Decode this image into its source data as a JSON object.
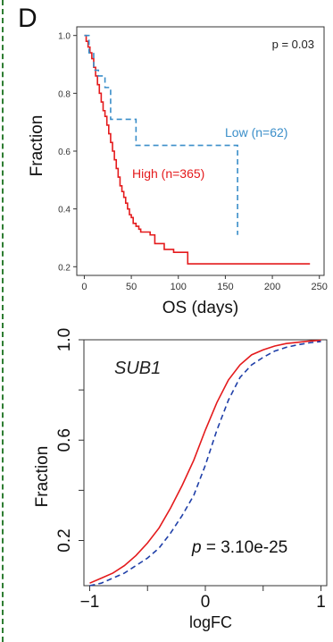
{
  "panel_label": "D",
  "chart_data": [
    {
      "type": "line",
      "subtype": "kaplan-meier step",
      "xlabel": "OS (days)",
      "ylabel": "Fraction",
      "xlim": [
        -8,
        255
      ],
      "ylim": [
        0.17,
        1.03
      ],
      "x_ticks": [
        0,
        50,
        100,
        150,
        200,
        250
      ],
      "x_tick_labels": [
        "0",
        "50",
        "100",
        "150",
        "200",
        "250"
      ],
      "y_ticks": [
        0.2,
        0.4,
        0.6,
        0.8,
        1.0
      ],
      "y_tick_labels": [
        "0.2",
        "0.4",
        "0.6",
        "0.8",
        "1.0"
      ],
      "annotation": "p = 0.03",
      "grid": false,
      "series": [
        {
          "name": "High (n=365)",
          "color": "#e41a1c",
          "dash": "solid",
          "x": [
            0,
            2,
            4,
            6,
            8,
            10,
            12,
            14,
            16,
            18,
            20,
            22,
            24,
            26,
            28,
            30,
            32,
            34,
            36,
            38,
            40,
            42,
            44,
            46,
            48,
            50,
            52,
            55,
            58,
            60,
            65,
            70,
            75,
            80,
            85,
            90,
            95,
            100,
            105,
            110,
            240
          ],
          "y": [
            1.0,
            0.98,
            0.96,
            0.94,
            0.92,
            0.89,
            0.86,
            0.83,
            0.8,
            0.77,
            0.74,
            0.72,
            0.69,
            0.66,
            0.63,
            0.6,
            0.57,
            0.54,
            0.51,
            0.48,
            0.46,
            0.44,
            0.42,
            0.4,
            0.38,
            0.37,
            0.35,
            0.34,
            0.33,
            0.32,
            0.32,
            0.31,
            0.28,
            0.28,
            0.26,
            0.26,
            0.25,
            0.25,
            0.25,
            0.21,
            0.21
          ]
        },
        {
          "name": "Low (n=62)",
          "color": "#3a8ec9",
          "dash": "dashed",
          "x": [
            0,
            5,
            10,
            15,
            22,
            28,
            35,
            45,
            55,
            60,
            163,
            163
          ],
          "y": [
            1.0,
            0.94,
            0.88,
            0.86,
            0.82,
            0.71,
            0.71,
            0.71,
            0.62,
            0.62,
            0.52,
            0.31
          ]
        }
      ]
    },
    {
      "type": "line",
      "subtype": "cumulative distribution",
      "title": "SUB1",
      "xlabel": "logFC",
      "ylabel": "Fraction",
      "xlim": [
        -1.05,
        1.05
      ],
      "ylim": [
        0.02,
        1.0
      ],
      "x_ticks": [
        -1,
        0,
        1
      ],
      "x_tick_labels": [
        "−1",
        "0",
        "1"
      ],
      "x_minor_ticks": [
        -0.5,
        0.5
      ],
      "y_ticks": [
        0.2,
        0.6,
        1.0
      ],
      "y_tick_labels": [
        "0.2",
        "0.6",
        "1.0"
      ],
      "y_minor_ticks": [
        0.4,
        0.8
      ],
      "annotation_prefix": "p",
      "annotation_value": " = 3.10e-25",
      "grid": false,
      "series": [
        {
          "name": "",
          "color": "#e41a1c",
          "dash": "solid",
          "x": [
            -1,
            -0.9,
            -0.8,
            -0.7,
            -0.6,
            -0.5,
            -0.4,
            -0.3,
            -0.2,
            -0.1,
            0,
            0.1,
            0.2,
            0.3,
            0.4,
            0.5,
            0.6,
            0.7,
            0.8,
            0.9,
            1
          ],
          "y": [
            0.03,
            0.05,
            0.07,
            0.1,
            0.14,
            0.19,
            0.25,
            0.33,
            0.42,
            0.52,
            0.64,
            0.75,
            0.84,
            0.9,
            0.94,
            0.96,
            0.975,
            0.985,
            0.99,
            0.995,
            0.998
          ]
        },
        {
          "name": "",
          "color": "#1f3fa8",
          "dash": "dashed",
          "x": [
            -1,
            -0.9,
            -0.8,
            -0.7,
            -0.6,
            -0.5,
            -0.4,
            -0.3,
            -0.2,
            -0.1,
            0,
            0.1,
            0.2,
            0.3,
            0.4,
            0.5,
            0.6,
            0.7,
            0.8,
            0.9,
            1
          ],
          "y": [
            0.02,
            0.03,
            0.05,
            0.07,
            0.1,
            0.13,
            0.17,
            0.23,
            0.3,
            0.38,
            0.5,
            0.64,
            0.76,
            0.85,
            0.9,
            0.93,
            0.955,
            0.97,
            0.98,
            0.988,
            0.993
          ]
        }
      ]
    }
  ]
}
